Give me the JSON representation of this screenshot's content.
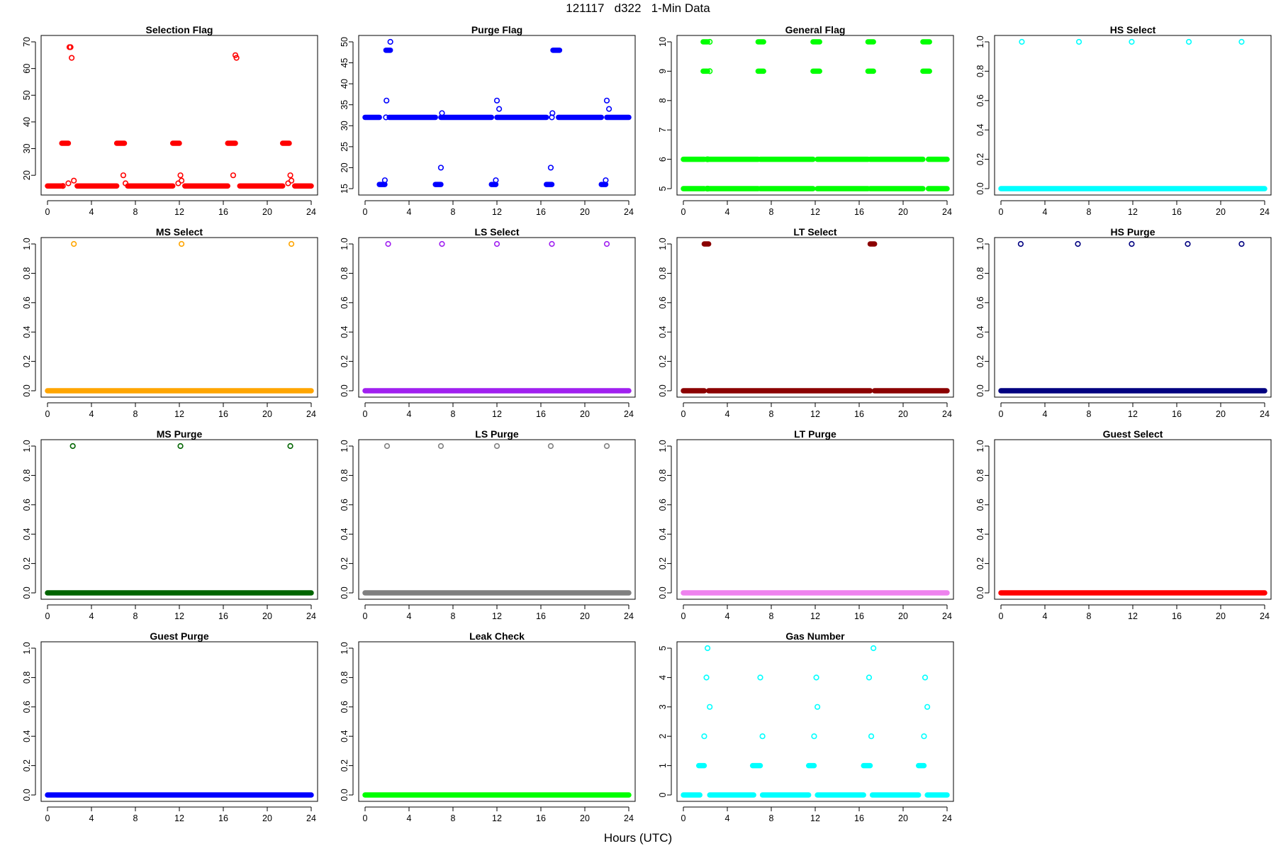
{
  "title": "121117   d322   1-Min Data",
  "xlabel": "Hours (UTC)",
  "chart_data": [
    {
      "type": "scatter",
      "title": "Selection Flag",
      "color": "#ff0000",
      "xlim": [
        0,
        24
      ],
      "ylim": [
        15,
        70
      ],
      "yticks": [
        20,
        30,
        40,
        50,
        60,
        70
      ],
      "xticks": [
        0,
        4,
        8,
        12,
        16,
        20,
        24
      ],
      "segments": [
        {
          "y": 16,
          "ranges": [
            [
              0,
              1.3
            ],
            [
              1.4,
              1.42
            ],
            [
              2.7,
              6.3
            ],
            [
              7.3,
              11.4
            ],
            [
              12.5,
              16.4
            ],
            [
              17.5,
              21.4
            ],
            [
              22.5,
              24
            ]
          ]
        },
        {
          "y": 32,
          "ranges": [
            [
              1.3,
              1.9
            ],
            [
              6.3,
              7.0
            ],
            [
              11.4,
              12.0
            ],
            [
              16.4,
              17.1
            ],
            [
              21.4,
              22.0
            ]
          ]
        }
      ],
      "points": [
        {
          "x": 1.9,
          "y": 17
        },
        {
          "x": 2.0,
          "y": 68
        },
        {
          "x": 2.1,
          "y": 68
        },
        {
          "x": 2.2,
          "y": 64
        },
        {
          "x": 2.4,
          "y": 18
        },
        {
          "x": 6.9,
          "y": 20
        },
        {
          "x": 7.1,
          "y": 17
        },
        {
          "x": 11.9,
          "y": 17
        },
        {
          "x": 12.1,
          "y": 20
        },
        {
          "x": 12.2,
          "y": 18
        },
        {
          "x": 16.9,
          "y": 20
        },
        {
          "x": 17.1,
          "y": 65
        },
        {
          "x": 17.2,
          "y": 64
        },
        {
          "x": 21.9,
          "y": 17
        },
        {
          "x": 22.1,
          "y": 20
        },
        {
          "x": 22.2,
          "y": 18
        }
      ]
    },
    {
      "type": "scatter",
      "title": "Purge Flag",
      "color": "#0000ff",
      "xlim": [
        0,
        24
      ],
      "ylim": [
        15,
        50
      ],
      "yticks": [
        15,
        20,
        25,
        30,
        35,
        40,
        45,
        50
      ],
      "xticks": [
        0,
        4,
        8,
        12,
        16,
        20,
        24
      ],
      "segments": [
        {
          "y": 32,
          "ranges": [
            [
              0,
              1.3
            ],
            [
              2.2,
              6.4
            ],
            [
              6.9,
              11.5
            ],
            [
              12.0,
              16.5
            ],
            [
              17.6,
              21.5
            ],
            [
              22.0,
              24
            ]
          ]
        },
        {
          "y": 16,
          "ranges": [
            [
              1.3,
              1.8
            ],
            [
              6.4,
              6.9
            ],
            [
              11.5,
              11.9
            ],
            [
              16.5,
              17.0
            ],
            [
              21.5,
              21.9
            ]
          ]
        },
        {
          "y": 48,
          "ranges": [
            [
              1.9,
              2.3
            ],
            [
              17.1,
              17.7
            ]
          ]
        }
      ],
      "points": [
        {
          "x": 1.8,
          "y": 17
        },
        {
          "x": 1.9,
          "y": 32
        },
        {
          "x": 1.95,
          "y": 36
        },
        {
          "x": 2.3,
          "y": 50
        },
        {
          "x": 6.9,
          "y": 20
        },
        {
          "x": 7.0,
          "y": 33
        },
        {
          "x": 11.9,
          "y": 17
        },
        {
          "x": 12.0,
          "y": 36
        },
        {
          "x": 12.2,
          "y": 34
        },
        {
          "x": 16.9,
          "y": 20
        },
        {
          "x": 17.0,
          "y": 32
        },
        {
          "x": 17.05,
          "y": 33
        },
        {
          "x": 21.9,
          "y": 17
        },
        {
          "x": 22.0,
          "y": 36
        },
        {
          "x": 22.2,
          "y": 34
        }
      ]
    },
    {
      "type": "scatter",
      "title": "General Flag",
      "color": "#00ff00",
      "xlim": [
        0,
        24
      ],
      "ylim": [
        5,
        10
      ],
      "yticks": [
        5,
        6,
        7,
        8,
        9,
        10
      ],
      "xticks": [
        0,
        4,
        8,
        12,
        16,
        20,
        24
      ],
      "segments": [
        {
          "y": 5,
          "ranges": [
            [
              0,
              1.9
            ],
            [
              2.1,
              6.8
            ],
            [
              7.0,
              11.8
            ],
            [
              12.2,
              16.8
            ],
            [
              17.0,
              21.8
            ],
            [
              22.3,
              24
            ]
          ]
        },
        {
          "y": 6,
          "ranges": [
            [
              0,
              1.9
            ],
            [
              2.1,
              6.8
            ],
            [
              7.0,
              11.8
            ],
            [
              12.2,
              16.8
            ],
            [
              17.0,
              21.8
            ],
            [
              22.3,
              24
            ]
          ]
        },
        {
          "y": 9,
          "ranges": [
            [
              1.8,
              2.2
            ],
            [
              6.8,
              7.3
            ],
            [
              11.8,
              12.4
            ],
            [
              16.8,
              17.3
            ],
            [
              21.8,
              22.4
            ]
          ]
        },
        {
          "y": 10,
          "ranges": [
            [
              1.8,
              2.2
            ],
            [
              6.8,
              7.3
            ],
            [
              11.8,
              12.4
            ],
            [
              16.8,
              17.3
            ],
            [
              21.8,
              22.4
            ]
          ]
        }
      ],
      "points": [
        {
          "x": 2.4,
          "y": 9
        },
        {
          "x": 2.4,
          "y": 10
        },
        {
          "x": 2.2,
          "y": 6
        },
        {
          "x": 2.2,
          "y": 5
        }
      ]
    },
    {
      "type": "scatter",
      "title": "HS Select",
      "color": "#00ffff",
      "xlim": [
        0,
        24
      ],
      "ylim": [
        0,
        1
      ],
      "yticks": [
        0.0,
        0.2,
        0.4,
        0.6,
        0.8,
        1.0
      ],
      "xticks": [
        0,
        4,
        8,
        12,
        16,
        20,
        24
      ],
      "segments": [
        {
          "y": 0,
          "ranges": [
            [
              0,
              24
            ]
          ]
        }
      ],
      "points": [
        {
          "x": 1.9,
          "y": 1
        },
        {
          "x": 7.1,
          "y": 1
        },
        {
          "x": 11.9,
          "y": 1
        },
        {
          "x": 17.1,
          "y": 1
        },
        {
          "x": 21.9,
          "y": 1
        }
      ]
    },
    {
      "type": "scatter",
      "title": "MS Select",
      "color": "#ffa500",
      "xlim": [
        0,
        24
      ],
      "ylim": [
        0,
        1
      ],
      "yticks": [
        0.0,
        0.2,
        0.4,
        0.6,
        0.8,
        1.0
      ],
      "xticks": [
        0,
        4,
        8,
        12,
        16,
        20,
        24
      ],
      "segments": [
        {
          "y": 0,
          "ranges": [
            [
              0,
              24
            ]
          ]
        }
      ],
      "points": [
        {
          "x": 2.4,
          "y": 1
        },
        {
          "x": 12.2,
          "y": 1
        },
        {
          "x": 22.2,
          "y": 1
        }
      ]
    },
    {
      "type": "scatter",
      "title": "LS Select",
      "color": "#a020f0",
      "xlim": [
        0,
        24
      ],
      "ylim": [
        0,
        1
      ],
      "yticks": [
        0.0,
        0.2,
        0.4,
        0.6,
        0.8,
        1.0
      ],
      "xticks": [
        0,
        4,
        8,
        12,
        16,
        20,
        24
      ],
      "segments": [
        {
          "y": 0,
          "ranges": [
            [
              0,
              24
            ]
          ]
        }
      ],
      "points": [
        {
          "x": 2.1,
          "y": 1
        },
        {
          "x": 7.0,
          "y": 1
        },
        {
          "x": 12.0,
          "y": 1
        },
        {
          "x": 17.0,
          "y": 1
        },
        {
          "x": 22.0,
          "y": 1
        }
      ]
    },
    {
      "type": "scatter",
      "title": "LT Select",
      "color": "#8b0000",
      "xlim": [
        0,
        24
      ],
      "ylim": [
        0,
        1
      ],
      "yticks": [
        0.0,
        0.2,
        0.4,
        0.6,
        0.8,
        1.0
      ],
      "xticks": [
        0,
        4,
        8,
        12,
        16,
        20,
        24
      ],
      "segments": [
        {
          "y": 0,
          "ranges": [
            [
              0,
              1.9
            ],
            [
              2.3,
              17.0
            ],
            [
              17.4,
              24
            ]
          ]
        },
        {
          "y": 1,
          "ranges": [
            [
              1.9,
              2.3
            ],
            [
              17.0,
              17.4
            ]
          ]
        }
      ],
      "points": []
    },
    {
      "type": "scatter",
      "title": "HS Purge",
      "color": "#000080",
      "xlim": [
        0,
        24
      ],
      "ylim": [
        0,
        1
      ],
      "yticks": [
        0.0,
        0.2,
        0.4,
        0.6,
        0.8,
        1.0
      ],
      "xticks": [
        0,
        4,
        8,
        12,
        16,
        20,
        24
      ],
      "segments": [
        {
          "y": 0,
          "ranges": [
            [
              0,
              24
            ]
          ]
        }
      ],
      "points": [
        {
          "x": 1.8,
          "y": 1
        },
        {
          "x": 7.0,
          "y": 1
        },
        {
          "x": 11.9,
          "y": 1
        },
        {
          "x": 17.0,
          "y": 1
        },
        {
          "x": 21.9,
          "y": 1
        }
      ]
    },
    {
      "type": "scatter",
      "title": "MS Purge",
      "color": "#006400",
      "xlim": [
        0,
        24
      ],
      "ylim": [
        0,
        1
      ],
      "yticks": [
        0.0,
        0.2,
        0.4,
        0.6,
        0.8,
        1.0
      ],
      "xticks": [
        0,
        4,
        8,
        12,
        16,
        20,
        24
      ],
      "segments": [
        {
          "y": 0,
          "ranges": [
            [
              0,
              24
            ]
          ]
        }
      ],
      "points": [
        {
          "x": 2.3,
          "y": 1
        },
        {
          "x": 12.1,
          "y": 1
        },
        {
          "x": 22.1,
          "y": 1
        }
      ]
    },
    {
      "type": "scatter",
      "title": "LS Purge",
      "color": "#808080",
      "xlim": [
        0,
        24
      ],
      "ylim": [
        0,
        1
      ],
      "yticks": [
        0.0,
        0.2,
        0.4,
        0.6,
        0.8,
        1.0
      ],
      "xticks": [
        0,
        4,
        8,
        12,
        16,
        20,
        24
      ],
      "segments": [
        {
          "y": 0,
          "ranges": [
            [
              0,
              24
            ]
          ]
        }
      ],
      "points": [
        {
          "x": 2.0,
          "y": 1
        },
        {
          "x": 6.9,
          "y": 1
        },
        {
          "x": 12.0,
          "y": 1
        },
        {
          "x": 16.9,
          "y": 1
        },
        {
          "x": 22.0,
          "y": 1
        }
      ]
    },
    {
      "type": "scatter",
      "title": "LT Purge",
      "color": "#ee82ee",
      "xlim": [
        0,
        24
      ],
      "ylim": [
        0,
        1
      ],
      "yticks": [
        0.0,
        0.2,
        0.4,
        0.6,
        0.8,
        1.0
      ],
      "xticks": [
        0,
        4,
        8,
        12,
        16,
        20,
        24
      ],
      "segments": [
        {
          "y": 0,
          "ranges": [
            [
              0,
              24
            ]
          ]
        }
      ],
      "points": []
    },
    {
      "type": "scatter",
      "title": "Guest Select",
      "color": "#ff0000",
      "xlim": [
        0,
        24
      ],
      "ylim": [
        0,
        1
      ],
      "yticks": [
        0.0,
        0.2,
        0.4,
        0.6,
        0.8,
        1.0
      ],
      "xticks": [
        0,
        4,
        8,
        12,
        16,
        20,
        24
      ],
      "segments": [
        {
          "y": 0,
          "ranges": [
            [
              0,
              24
            ]
          ]
        }
      ],
      "points": []
    },
    {
      "type": "scatter",
      "title": "Guest Purge",
      "color": "#0000ff",
      "xlim": [
        0,
        24
      ],
      "ylim": [
        0,
        1
      ],
      "yticks": [
        0.0,
        0.2,
        0.4,
        0.6,
        0.8,
        1.0
      ],
      "xticks": [
        0,
        4,
        8,
        12,
        16,
        20,
        24
      ],
      "segments": [
        {
          "y": 0,
          "ranges": [
            [
              0,
              24
            ]
          ]
        }
      ],
      "points": []
    },
    {
      "type": "scatter",
      "title": "Leak Check",
      "color": "#00ff00",
      "xlim": [
        0,
        24
      ],
      "ylim": [
        0,
        1
      ],
      "yticks": [
        0.0,
        0.2,
        0.4,
        0.6,
        0.8,
        1.0
      ],
      "xticks": [
        0,
        4,
        8,
        12,
        16,
        20,
        24
      ],
      "segments": [
        {
          "y": 0,
          "ranges": [
            [
              0,
              24
            ]
          ]
        }
      ],
      "points": []
    },
    {
      "type": "scatter",
      "title": "Gas Number",
      "color": "#00ffff",
      "xlim": [
        0,
        24
      ],
      "ylim": [
        0,
        5
      ],
      "yticks": [
        0,
        1,
        2,
        3,
        4,
        5
      ],
      "xticks": [
        0,
        4,
        8,
        12,
        16,
        20,
        24
      ],
      "segments": [
        {
          "y": 0,
          "ranges": [
            [
              0,
              1.5
            ],
            [
              2.4,
              6.4
            ],
            [
              7.2,
              11.4
            ],
            [
              12.2,
              16.4
            ],
            [
              17.2,
              21.4
            ],
            [
              22.2,
              24
            ]
          ]
        },
        {
          "y": 1,
          "ranges": [
            [
              1.4,
              1.9
            ],
            [
              6.3,
              7.0
            ],
            [
              11.4,
              11.9
            ],
            [
              16.4,
              17.0
            ],
            [
              21.4,
              21.9
            ]
          ]
        }
      ],
      "points": [
        {
          "x": 1.9,
          "y": 2
        },
        {
          "x": 2.1,
          "y": 4
        },
        {
          "x": 2.2,
          "y": 5
        },
        {
          "x": 2.4,
          "y": 3
        },
        {
          "x": 7.0,
          "y": 4
        },
        {
          "x": 7.2,
          "y": 2
        },
        {
          "x": 11.9,
          "y": 2
        },
        {
          "x": 12.1,
          "y": 4
        },
        {
          "x": 12.2,
          "y": 3
        },
        {
          "x": 16.9,
          "y": 4
        },
        {
          "x": 17.1,
          "y": 2
        },
        {
          "x": 17.3,
          "y": 5
        },
        {
          "x": 21.9,
          "y": 2
        },
        {
          "x": 22.0,
          "y": 4
        },
        {
          "x": 22.2,
          "y": 3
        }
      ]
    }
  ]
}
